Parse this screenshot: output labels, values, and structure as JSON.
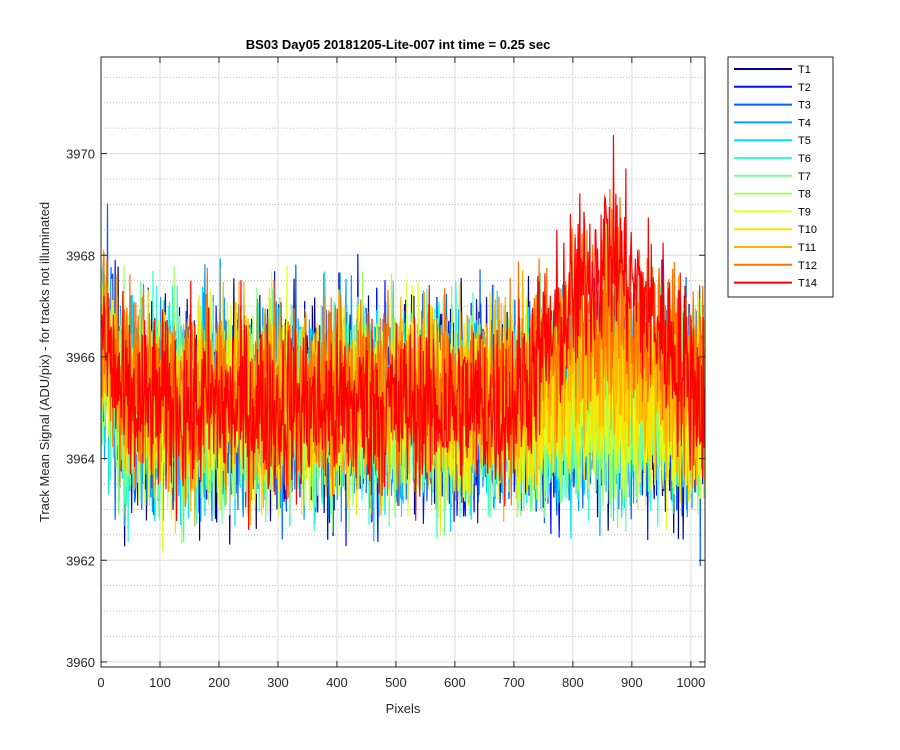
{
  "chart_data": {
    "type": "line",
    "title": "BS03 Day05 20181205-Lite-007 int time = 0.25 sec",
    "xlabel": "Pixels",
    "ylabel": "Track Mean Signal (ADU/pix) - for tracks not illuminated",
    "xlim": [
      0,
      1024
    ],
    "ylim": [
      3959.9,
      3971.9
    ],
    "xticks": [
      0,
      100,
      200,
      300,
      400,
      500,
      600,
      700,
      800,
      900,
      1000
    ],
    "yticks": [
      3960,
      3962,
      3964,
      3966,
      3968,
      3970
    ],
    "grid": true,
    "minor_grid": true,
    "legend_position": "outside-top-right",
    "n_points": 1024,
    "series": [
      {
        "name": "T1",
        "color": "#00008f",
        "mean": 3965.0,
        "noise": 1.05
      },
      {
        "name": "T2",
        "color": "#0010ff",
        "mean": 3965.0,
        "noise": 1.05
      },
      {
        "name": "T3",
        "color": "#0060ff",
        "mean": 3965.0,
        "noise": 1.05
      },
      {
        "name": "T4",
        "color": "#00a0ff",
        "mean": 3965.0,
        "noise": 1.0
      },
      {
        "name": "T5",
        "color": "#00e0ff",
        "mean": 3965.0,
        "noise": 1.0
      },
      {
        "name": "T6",
        "color": "#30ffcf",
        "mean": 3965.0,
        "noise": 1.0
      },
      {
        "name": "T7",
        "color": "#70ff8f",
        "mean": 3965.0,
        "noise": 1.0
      },
      {
        "name": "T8",
        "color": "#9fff60",
        "mean": 3965.0,
        "noise": 1.0
      },
      {
        "name": "T9",
        "color": "#dfff20",
        "mean": 3965.0,
        "noise": 0.95
      },
      {
        "name": "T10",
        "color": "#ffe000",
        "mean": 3965.1,
        "noise": 0.95
      },
      {
        "name": "T11",
        "color": "#ffb000",
        "mean": 3965.2,
        "noise": 0.95
      },
      {
        "name": "T12",
        "color": "#ff7000",
        "mean": 3965.4,
        "noise": 0.95
      },
      {
        "name": "T14",
        "color": "#ff0000",
        "mean": 3965.0,
        "noise": 0.9
      }
    ]
  }
}
